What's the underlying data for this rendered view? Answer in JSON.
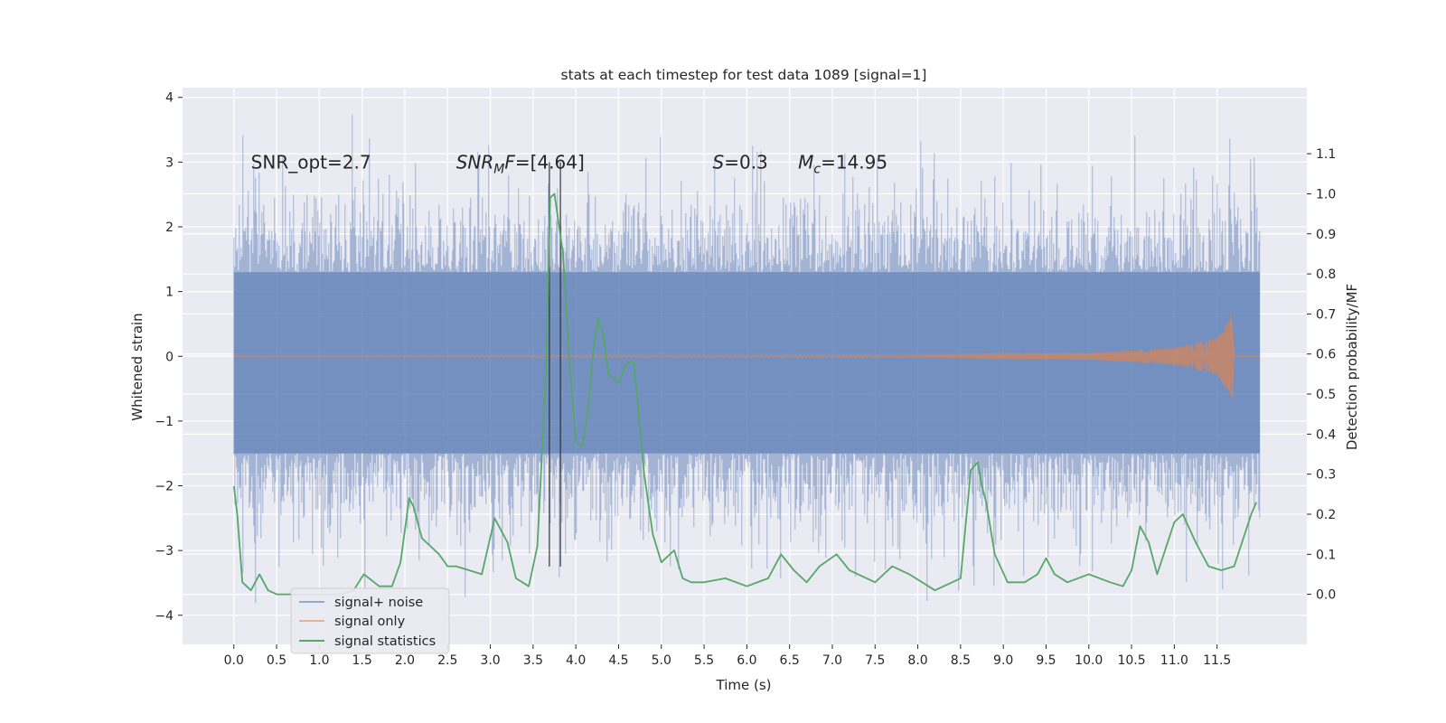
{
  "chart_data": {
    "type": "line",
    "title": "stats at each timestep for test data 1089 [signal=1]",
    "xlabel": "Time (s)",
    "ylabel": "Whitened strain",
    "ylabel_right": "Detection probability/MF",
    "xlim": [
      -0.6,
      12.55
    ],
    "ylim": [
      -4.45,
      4.15
    ],
    "ylim_right": [
      -0.125,
      1.265
    ],
    "xticks": [
      0.0,
      0.5,
      1.0,
      1.5,
      2.0,
      2.5,
      3.0,
      3.5,
      4.0,
      4.5,
      5.0,
      5.5,
      6.0,
      6.5,
      7.0,
      7.5,
      8.0,
      8.5,
      9.0,
      9.5,
      10.0,
      10.5,
      11.0,
      11.5
    ],
    "xtick_labels": [
      "0.0",
      "0.5",
      "1.0",
      "1.5",
      "2.0",
      "2.5",
      "3.0",
      "3.5",
      "4.0",
      "4.5",
      "5.0",
      "5.5",
      "6.0",
      "6.5",
      "7.0",
      "7.5",
      "8.0",
      "8.5",
      "9.0",
      "9.5",
      "10.0",
      "10.5",
      "11.0",
      "11.5"
    ],
    "yticks": [
      -4,
      -3,
      -2,
      -1,
      0,
      1,
      2,
      3,
      4
    ],
    "ytick_labels": [
      "−4",
      "−3",
      "−2",
      "−1",
      "0",
      "1",
      "2",
      "3",
      "4"
    ],
    "yticks_right": [
      0.0,
      0.1,
      0.2,
      0.3,
      0.4,
      0.5,
      0.6,
      0.7,
      0.8,
      0.9,
      1.0,
      1.1
    ],
    "ytick_labels_right": [
      "0.0",
      "0.1",
      "0.2",
      "0.3",
      "0.4",
      "0.5",
      "0.6",
      "0.7",
      "0.8",
      "0.9",
      "1.0",
      "1.1"
    ],
    "grid": true,
    "legend_position": "lower-left",
    "annotations": [
      {
        "parts": [
          {
            "text": "SNR_opt=2.7"
          }
        ],
        "x": 0.2,
        "y": 3.0
      },
      {
        "parts": [
          {
            "text": "SNR",
            "italic": true
          },
          {
            "text": "M",
            "italic": true,
            "sub": true
          },
          {
            "text": "F",
            "italic": true
          },
          {
            "text": "=[4.64]"
          }
        ],
        "x": 2.6,
        "y": 3.0
      },
      {
        "parts": [
          {
            "text": "S",
            "italic": true
          },
          {
            "text": "=0.3"
          }
        ],
        "x": 5.6,
        "y": 3.0
      },
      {
        "parts": [
          {
            "text": "M",
            "italic": true
          },
          {
            "text": "c",
            "italic": true,
            "sub": true
          },
          {
            "text": "=14.95"
          }
        ],
        "x": 6.6,
        "y": 3.0
      }
    ],
    "vlines": [
      {
        "x": 3.69,
        "ymin": -3.25,
        "ymax": 3.0
      },
      {
        "x": 3.82,
        "ymin": -3.25,
        "ymax": 3.0
      }
    ],
    "series": [
      {
        "name": "signal+ noise",
        "axis": "left",
        "color": "#4c72b0",
        "style": "noise",
        "x_range": [
          0.0,
          12.0
        ],
        "envelope": {
          "core_low": -1.5,
          "core_high": 1.3,
          "peak_max": 3.8,
          "peak_min": -4.1
        }
      },
      {
        "name": "signal only",
        "axis": "left",
        "color": "#dd8452",
        "style": "chirp",
        "x_range": [
          0.0,
          11.7
        ],
        "amplitude": [
          [
            0.0,
            0.005
          ],
          [
            8.0,
            0.02
          ],
          [
            10.0,
            0.05
          ],
          [
            11.0,
            0.13
          ],
          [
            11.5,
            0.28
          ],
          [
            11.63,
            0.55
          ],
          [
            11.68,
            0.68
          ],
          [
            11.7,
            0.0
          ]
        ]
      },
      {
        "name": "signal statistics",
        "axis": "right",
        "color": "#55a868",
        "style": "line",
        "x": [
          0.0,
          0.04,
          0.1,
          0.2,
          0.3,
          0.4,
          0.5,
          0.75,
          1.0,
          1.25,
          1.4,
          1.52,
          1.7,
          1.85,
          1.95,
          2.05,
          2.1,
          2.2,
          2.3,
          2.4,
          2.5,
          2.6,
          2.75,
          2.9,
          3.05,
          3.2,
          3.3,
          3.45,
          3.55,
          3.65,
          3.7,
          3.75,
          3.85,
          3.92,
          4.0,
          4.08,
          4.14,
          4.2,
          4.26,
          4.32,
          4.38,
          4.5,
          4.58,
          4.62,
          4.68,
          4.8,
          4.9,
          5.0,
          5.15,
          5.25,
          5.35,
          5.5,
          5.75,
          6.0,
          6.25,
          6.4,
          6.55,
          6.7,
          6.85,
          7.05,
          7.2,
          7.5,
          7.7,
          7.9,
          8.2,
          8.5,
          8.62,
          8.7,
          8.75,
          8.8,
          8.9,
          9.05,
          9.25,
          9.4,
          9.5,
          9.6,
          9.75,
          10.0,
          10.25,
          10.4,
          10.5,
          10.6,
          10.7,
          10.8,
          11.0,
          11.1,
          11.25,
          11.4,
          11.55,
          11.7,
          11.9,
          11.96
        ],
        "y": [
          0.27,
          0.2,
          0.03,
          0.01,
          0.05,
          0.01,
          0.0,
          0.0,
          0.0,
          0.0,
          0.01,
          0.05,
          0.02,
          0.02,
          0.08,
          0.24,
          0.22,
          0.14,
          0.12,
          0.1,
          0.07,
          0.07,
          0.06,
          0.05,
          0.19,
          0.13,
          0.04,
          0.02,
          0.12,
          0.55,
          0.99,
          1.0,
          0.85,
          0.6,
          0.38,
          0.37,
          0.45,
          0.6,
          0.69,
          0.65,
          0.55,
          0.53,
          0.57,
          0.58,
          0.58,
          0.3,
          0.15,
          0.08,
          0.11,
          0.04,
          0.03,
          0.03,
          0.04,
          0.02,
          0.04,
          0.1,
          0.06,
          0.03,
          0.07,
          0.1,
          0.06,
          0.03,
          0.07,
          0.05,
          0.01,
          0.04,
          0.31,
          0.33,
          0.27,
          0.23,
          0.1,
          0.03,
          0.03,
          0.05,
          0.09,
          0.05,
          0.03,
          0.05,
          0.03,
          0.02,
          0.06,
          0.17,
          0.13,
          0.05,
          0.18,
          0.2,
          0.13,
          0.07,
          0.06,
          0.07,
          0.2,
          0.23
        ]
      }
    ]
  }
}
